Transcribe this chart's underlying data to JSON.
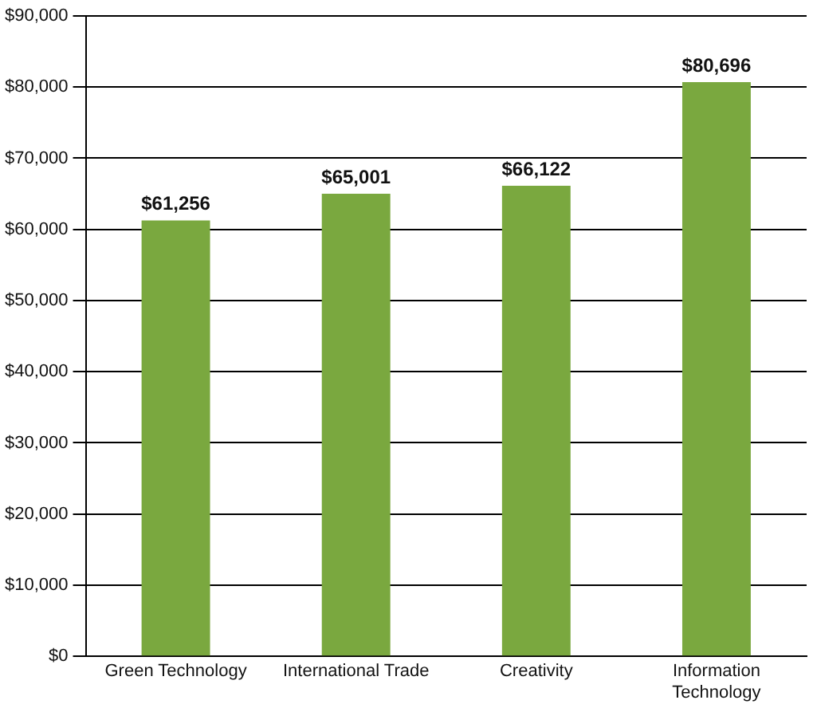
{
  "chart_data": {
    "type": "bar",
    "categories": [
      "Green Technology",
      "International Trade",
      "Creativity",
      "Information Technology"
    ],
    "values": [
      61256,
      65001,
      66122,
      80696
    ],
    "color": "#7aa83f",
    "ylim": [
      0,
      90000
    ],
    "yticks": [
      {
        "value": 0,
        "label": "$0"
      },
      {
        "value": 10000,
        "label": "$10,000"
      },
      {
        "value": 20000,
        "label": "$20,000"
      },
      {
        "value": 30000,
        "label": "$30,000"
      },
      {
        "value": 40000,
        "label": "$40,000"
      },
      {
        "value": 50000,
        "label": "$50,000"
      },
      {
        "value": 60000,
        "label": "$60,000"
      },
      {
        "value": 70000,
        "label": "$70,000"
      },
      {
        "value": 80000,
        "label": "$80,000"
      },
      {
        "value": 90000,
        "label": "$90,000"
      }
    ],
    "value_labels": [
      "$61,256",
      "$65,001",
      "$66,122",
      "$80,696"
    ],
    "grid": "y"
  }
}
